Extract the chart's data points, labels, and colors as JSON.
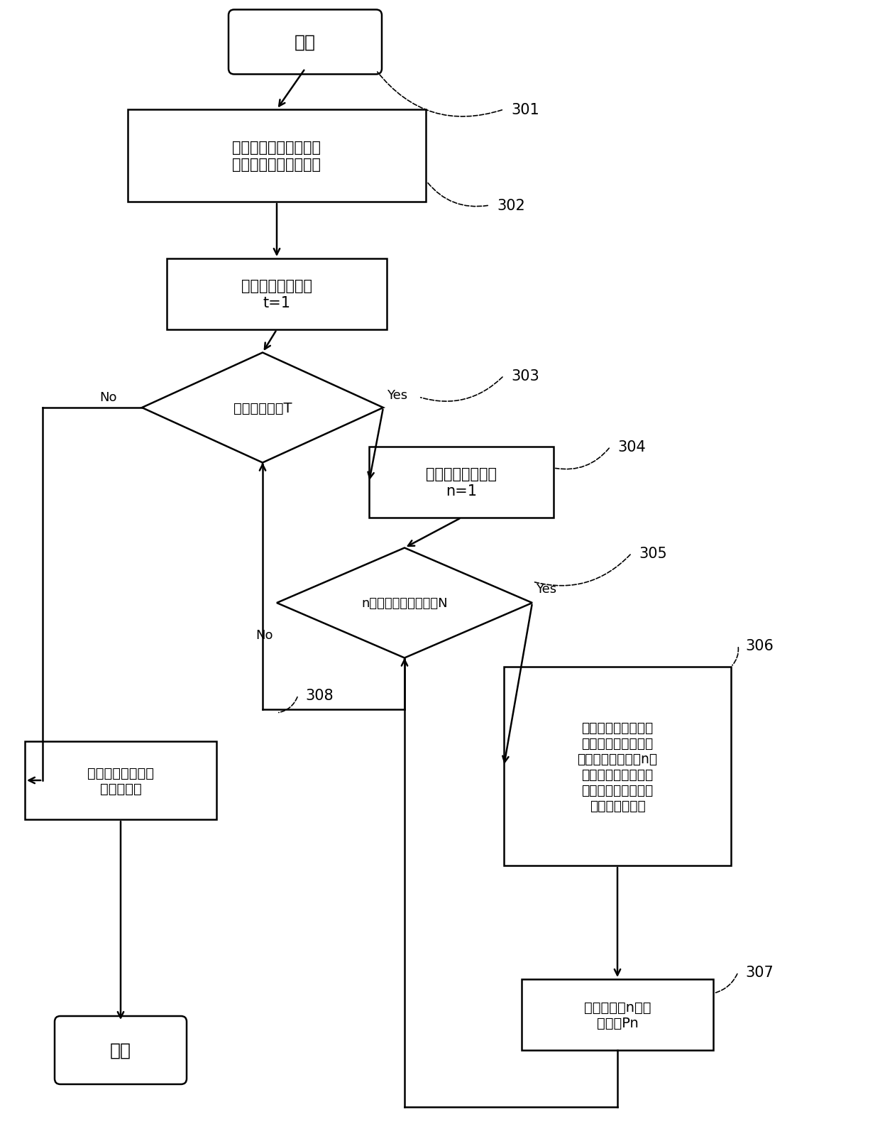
{
  "bg_color": "#ffffff",
  "line_color": "#000000",
  "text_color": "#000000",
  "start_text": "开始",
  "end_text": "结束",
  "box1_text": "从基站的子信道分配表\n中获得子信道分配情况",
  "box2_text": "迭代次数初始化为\nt=1",
  "d1_text": "迭代次数小于T",
  "box3_text": "初始化子信道编号\nn=1",
  "d2_text": "n小于最大子信道编号N",
  "box4_text": "在其他子信道的功率\n保持不变的基础上，\n调整分配给子信道n的\n功率，使该子信道对\n于其对应的用户的能\n量效用函数最大",
  "box5_text": "更新子信道n的分\n配功率Pn",
  "box6_text": "返回子信道和功率\n分配的结果",
  "yes1": "Yes",
  "no1": "No",
  "yes2": "Yes",
  "no2": "No",
  "ref301": "301",
  "ref302": "302",
  "ref303": "303",
  "ref304": "304",
  "ref305": "305",
  "ref306": "306",
  "ref307": "307",
  "ref308": "308"
}
